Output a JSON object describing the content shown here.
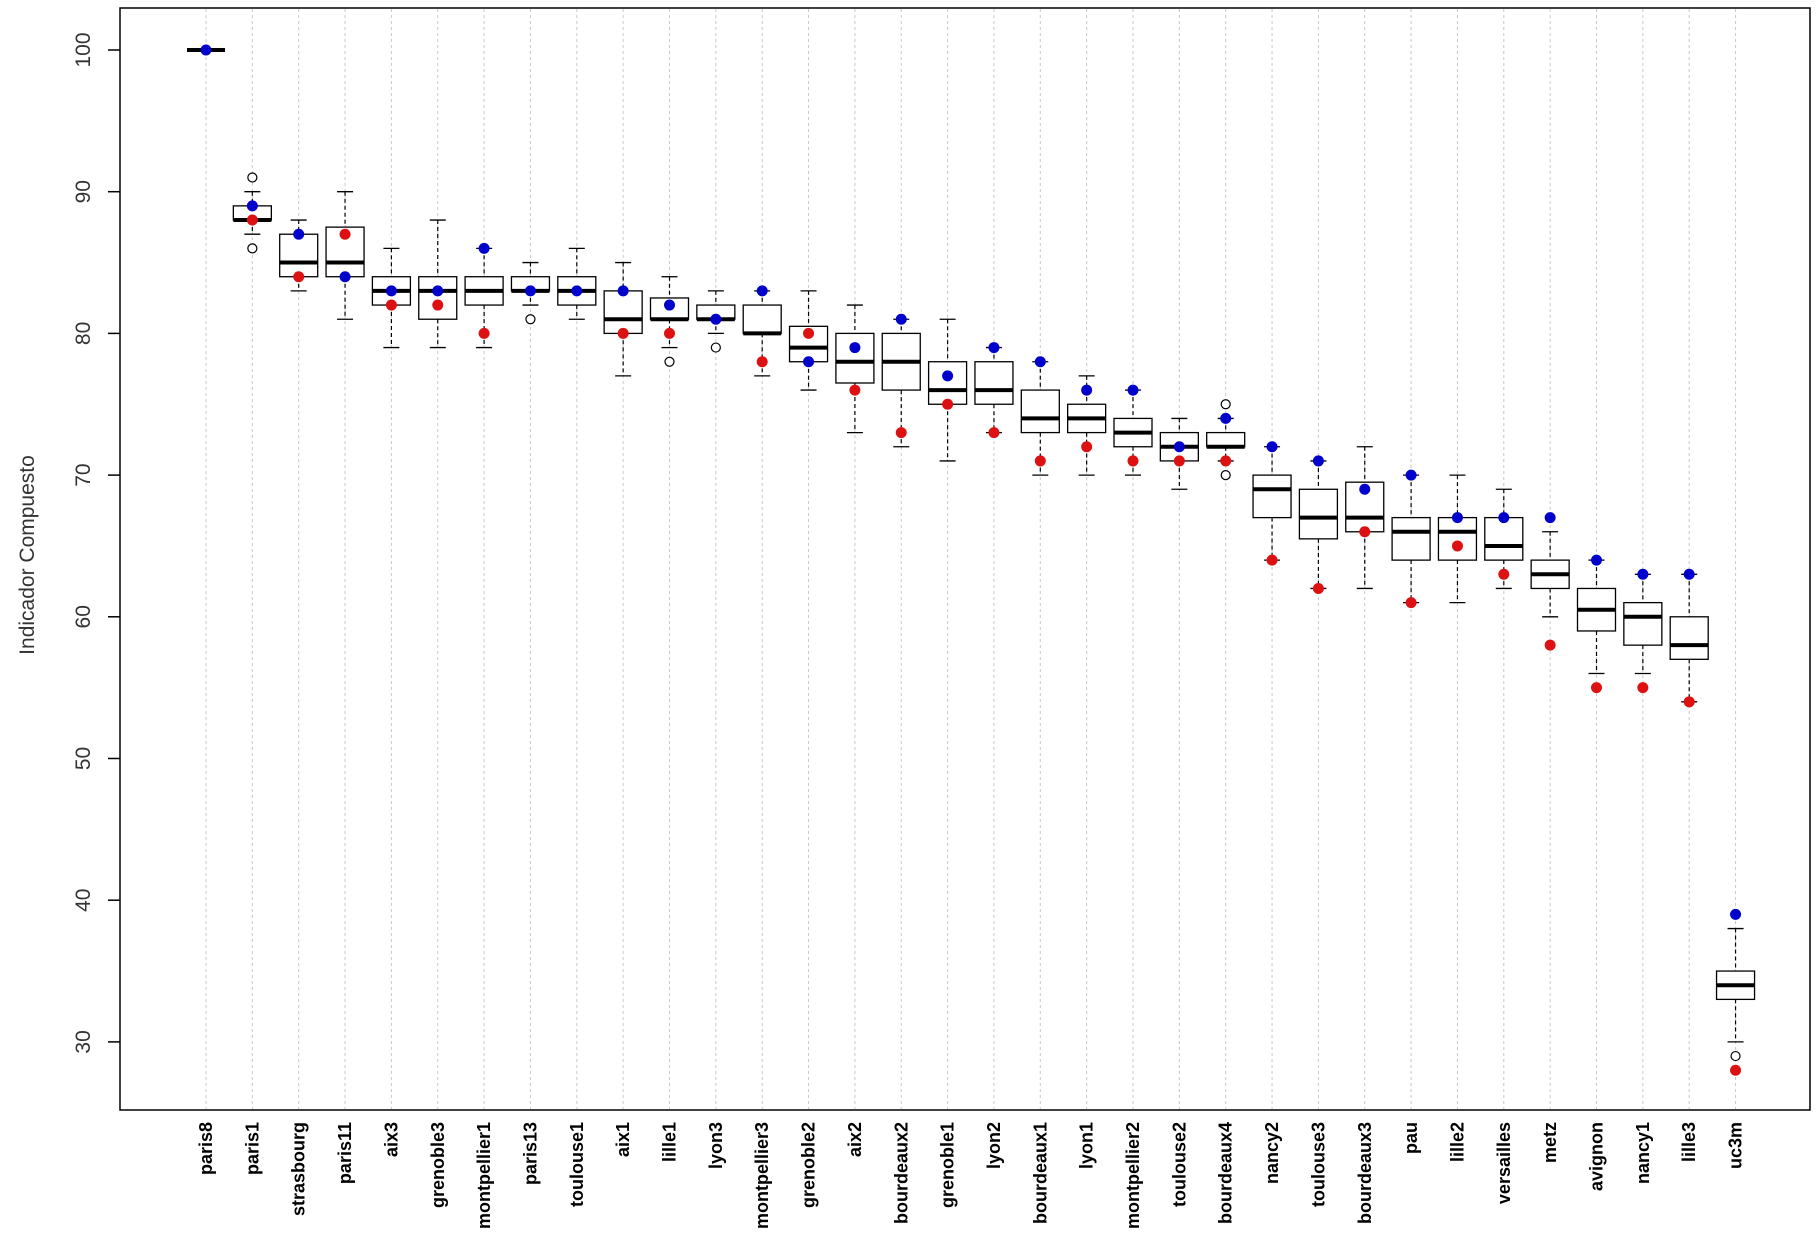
{
  "chart_data": {
    "type": "boxplot",
    "ylabel": "Indicador Compuesto",
    "ylim": [
      25,
      100
    ],
    "yticks": [
      30,
      40,
      50,
      60,
      70,
      80,
      90,
      100
    ],
    "grid": "vertical dotted lines at each category",
    "categories": [
      {
        "name": "paris8",
        "whisker_low": 100,
        "q1": 100,
        "median": 100,
        "q3": 100,
        "whisker_high": 100,
        "outliers": [],
        "blue": 100,
        "red": null
      },
      {
        "name": "paris1",
        "whisker_low": 87,
        "q1": 88,
        "median": 88,
        "q3": 89,
        "whisker_high": 90,
        "outliers": [
          86,
          91
        ],
        "blue": 89,
        "red": 88
      },
      {
        "name": "strasbourg",
        "whisker_low": 83,
        "q1": 84,
        "median": 85,
        "q3": 87,
        "whisker_high": 88,
        "outliers": [],
        "blue": 87,
        "red": 84
      },
      {
        "name": "paris11",
        "whisker_low": 81,
        "q1": 84,
        "median": 85,
        "q3": 87.5,
        "whisker_high": 90,
        "outliers": [],
        "blue": 84,
        "red": 87
      },
      {
        "name": "aix3",
        "whisker_low": 79,
        "q1": 82,
        "median": 83,
        "q3": 84,
        "whisker_high": 86,
        "outliers": [],
        "blue": 83,
        "red": 82
      },
      {
        "name": "grenoble3",
        "whisker_low": 79,
        "q1": 81,
        "median": 83,
        "q3": 84,
        "whisker_high": 88,
        "outliers": [],
        "blue": 83,
        "red": 82
      },
      {
        "name": "montpellier1",
        "whisker_low": 79,
        "q1": 82,
        "median": 83,
        "q3": 84,
        "whisker_high": 86,
        "outliers": [],
        "blue": 86,
        "red": 80
      },
      {
        "name": "paris13",
        "whisker_low": 82,
        "q1": 83,
        "median": 83,
        "q3": 84,
        "whisker_high": 85,
        "outliers": [
          81
        ],
        "blue": 83,
        "red": null
      },
      {
        "name": "toulouse1",
        "whisker_low": 81,
        "q1": 82,
        "median": 83,
        "q3": 84,
        "whisker_high": 86,
        "outliers": [],
        "blue": 83,
        "red": null
      },
      {
        "name": "aix1",
        "whisker_low": 77,
        "q1": 80,
        "median": 81,
        "q3": 83,
        "whisker_high": 85,
        "outliers": [],
        "blue": 83,
        "red": 80
      },
      {
        "name": "lille1",
        "whisker_low": 79,
        "q1": 81,
        "median": 81,
        "q3": 82.5,
        "whisker_high": 84,
        "outliers": [
          78
        ],
        "blue": 82,
        "red": 80
      },
      {
        "name": "lyon3",
        "whisker_low": 80,
        "q1": 81,
        "median": 81,
        "q3": 82,
        "whisker_high": 83,
        "outliers": [
          79
        ],
        "blue": 81,
        "red": null
      },
      {
        "name": "montpellier3",
        "whisker_low": 77,
        "q1": 80,
        "median": 80,
        "q3": 82,
        "whisker_high": 83,
        "outliers": [],
        "blue": 83,
        "red": 78
      },
      {
        "name": "grenoble2",
        "whisker_low": 76,
        "q1": 78,
        "median": 79,
        "q3": 80.5,
        "whisker_high": 83,
        "outliers": [],
        "blue": 78,
        "red": 80
      },
      {
        "name": "aix2",
        "whisker_low": 73,
        "q1": 76.5,
        "median": 78,
        "q3": 80,
        "whisker_high": 82,
        "outliers": [],
        "blue": 79,
        "red": 76
      },
      {
        "name": "bourdeaux2",
        "whisker_low": 72,
        "q1": 76,
        "median": 78,
        "q3": 80,
        "whisker_high": 81,
        "outliers": [],
        "blue": 81,
        "red": 73
      },
      {
        "name": "grenoble1",
        "whisker_low": 71,
        "q1": 75,
        "median": 76,
        "q3": 78,
        "whisker_high": 81,
        "outliers": [],
        "blue": 77,
        "red": 75
      },
      {
        "name": "lyon2",
        "whisker_low": 73,
        "q1": 75,
        "median": 76,
        "q3": 78,
        "whisker_high": 79,
        "outliers": [],
        "blue": 79,
        "red": 73
      },
      {
        "name": "bourdeaux1",
        "whisker_low": 70,
        "q1": 73,
        "median": 74,
        "q3": 76,
        "whisker_high": 78,
        "outliers": [],
        "blue": 78,
        "red": 71
      },
      {
        "name": "lyon1",
        "whisker_low": 70,
        "q1": 73,
        "median": 74,
        "q3": 75,
        "whisker_high": 77,
        "outliers": [],
        "blue": 76,
        "red": 72
      },
      {
        "name": "montpellier2",
        "whisker_low": 70,
        "q1": 72,
        "median": 73,
        "q3": 74,
        "whisker_high": 76,
        "outliers": [],
        "blue": 76,
        "red": 71
      },
      {
        "name": "toulouse2",
        "whisker_low": 69,
        "q1": 71,
        "median": 72,
        "q3": 73,
        "whisker_high": 74,
        "outliers": [],
        "blue": 72,
        "red": 71
      },
      {
        "name": "bourdeaux4",
        "whisker_low": 71,
        "q1": 72,
        "median": 72,
        "q3": 73,
        "whisker_high": 74,
        "outliers": [
          75,
          70
        ],
        "blue": 74,
        "red": 71
      },
      {
        "name": "nancy2",
        "whisker_low": 64,
        "q1": 67,
        "median": 69,
        "q3": 70,
        "whisker_high": 72,
        "outliers": [],
        "blue": 72,
        "red": 64
      },
      {
        "name": "toulouse3",
        "whisker_low": 62,
        "q1": 65.5,
        "median": 67,
        "q3": 69,
        "whisker_high": 71,
        "outliers": [],
        "blue": 71,
        "red": 62
      },
      {
        "name": "bourdeaux3",
        "whisker_low": 62,
        "q1": 66,
        "median": 67,
        "q3": 69.5,
        "whisker_high": 72,
        "outliers": [],
        "blue": 69,
        "red": 66
      },
      {
        "name": "pau",
        "whisker_low": 61,
        "q1": 64,
        "median": 66,
        "q3": 67,
        "whisker_high": 70,
        "outliers": [],
        "blue": 70,
        "red": 61
      },
      {
        "name": "lille2",
        "whisker_low": 61,
        "q1": 64,
        "median": 66,
        "q3": 67,
        "whisker_high": 70,
        "outliers": [],
        "blue": 67,
        "red": 65
      },
      {
        "name": "versailles",
        "whisker_low": 62,
        "q1": 64,
        "median": 65,
        "q3": 67,
        "whisker_high": 69,
        "outliers": [],
        "blue": 67,
        "red": 63
      },
      {
        "name": "metz",
        "whisker_low": 60,
        "q1": 62,
        "median": 63,
        "q3": 64,
        "whisker_high": 66,
        "outliers": [],
        "blue": 67,
        "red": 58
      },
      {
        "name": "avignon",
        "whisker_low": 56,
        "q1": 59,
        "median": 60.5,
        "q3": 62,
        "whisker_high": 64,
        "outliers": [],
        "blue": 64,
        "red": 55
      },
      {
        "name": "nancy1",
        "whisker_low": 56,
        "q1": 58,
        "median": 60,
        "q3": 61,
        "whisker_high": 63,
        "outliers": [],
        "blue": 63,
        "red": 55
      },
      {
        "name": "lille3",
        "whisker_low": 54,
        "q1": 57,
        "median": 58,
        "q3": 60,
        "whisker_high": 63,
        "outliers": [],
        "blue": 63,
        "red": 54
      },
      {
        "name": "uc3m",
        "whisker_low": 30,
        "q1": 33,
        "median": 34,
        "q3": 35,
        "whisker_high": 38,
        "outliers": [
          29
        ],
        "blue": 39,
        "red": 28
      }
    ],
    "colors": {
      "blue_point": "#0000cc",
      "red_point": "#dd1111",
      "grid": "#c8c8c8",
      "box": "#000000"
    }
  }
}
